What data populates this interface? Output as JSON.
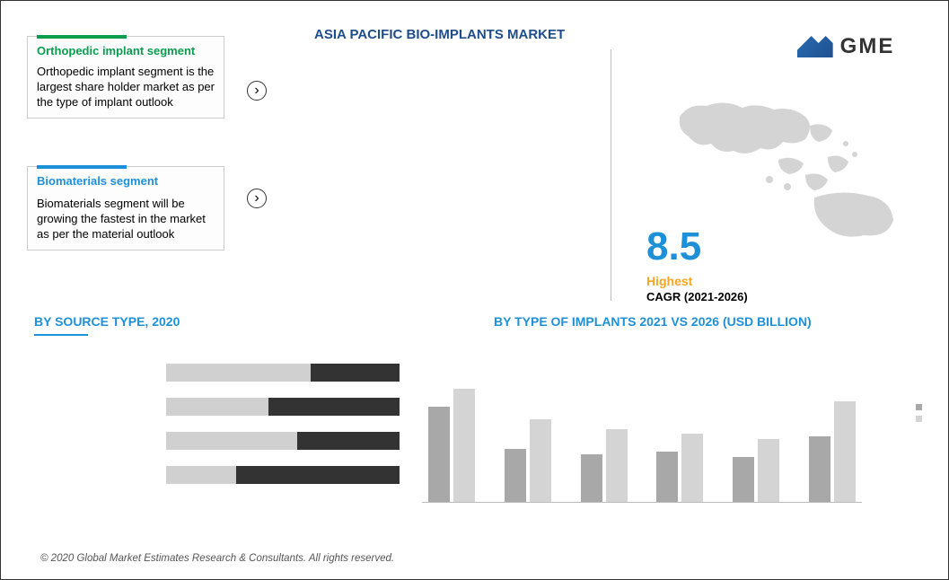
{
  "title": "ASIA PACIFIC BIO-IMPLANTS MARKET",
  "logo_text": "GME",
  "card1": {
    "title": "Orthopedic implant segment",
    "body": "Orthopedic implant segment is the largest share holder market as per the type of implant outlook",
    "accent": "#0a9d4e"
  },
  "card2": {
    "title": "Biomaterials segment",
    "body": "Biomaterials segment will be growing the fastest in the market as per the material outlook",
    "accent": "#1e90d8"
  },
  "cagr": {
    "value": "8.5",
    "label": "Highest",
    "sub": "CAGR (2021-2026)",
    "value_color": "#1e90d8",
    "label_color": "#f5a623"
  },
  "source_section": {
    "title": "BY  SOURCE TYPE, 2020"
  },
  "implant_section": {
    "title": "BY TYPE OF IMPLANTS  2021 VS 2026 (USD BILLION)"
  },
  "hbars": {
    "track_color": "#333333",
    "fill_color": "#d0d0d0",
    "total_width": 260,
    "bars": [
      {
        "pct": 62
      },
      {
        "pct": 44
      },
      {
        "pct": 56
      },
      {
        "pct": 30
      }
    ]
  },
  "vbars": {
    "series_a_color": "#a8a8a8",
    "series_b_color": "#d4d4d4",
    "max": 100,
    "groups": [
      {
        "a": 76,
        "b": 90
      },
      {
        "a": 42,
        "b": 66
      },
      {
        "a": 38,
        "b": 58
      },
      {
        "a": 40,
        "b": 54
      },
      {
        "a": 36,
        "b": 50
      },
      {
        "a": 52,
        "b": 80
      }
    ]
  },
  "map_fill": "#d4d4d4",
  "footer": "© 2020 Global Market Estimates Research & Consultants. All rights reserved."
}
